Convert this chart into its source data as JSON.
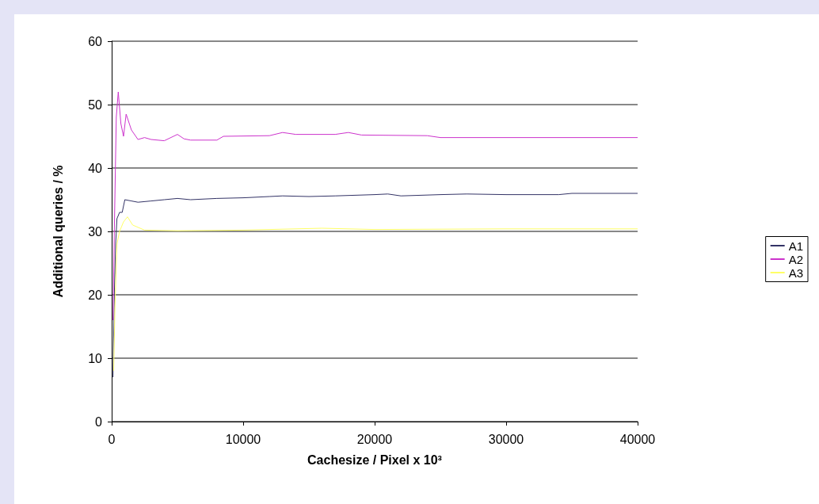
{
  "chart_data": {
    "type": "line",
    "xlabel": "Cachesize / Pixel x 10³",
    "ylabel": "Additional queries / %",
    "xlim": [
      0,
      40000
    ],
    "xticks": [
      0,
      10000,
      20000,
      30000,
      40000
    ],
    "ylim": [
      0,
      60
    ],
    "yticks": [
      0,
      10,
      20,
      30,
      40,
      50,
      60
    ],
    "grid": "y",
    "legend": "right",
    "marker": "none",
    "line_style": "solid",
    "series": [
      {
        "name": "A1",
        "color": "#333366",
        "x": [
          100,
          200,
          300,
          400,
          600,
          800,
          1000,
          1500,
          2000,
          3000,
          4000,
          5000,
          6000,
          8000,
          10000,
          12000,
          13000,
          15000,
          17000,
          20000,
          21000,
          22000,
          25000,
          27000,
          30000,
          34000,
          35000,
          40000
        ],
        "values": [
          7,
          20,
          28,
          32,
          33,
          33,
          35,
          34.8,
          34.6,
          34.8,
          35,
          35.2,
          35,
          35.2,
          35.3,
          35.5,
          35.6,
          35.5,
          35.6,
          35.8,
          35.9,
          35.6,
          35.8,
          35.9,
          35.8,
          35.8,
          36,
          36
        ]
      },
      {
        "name": "A2",
        "color": "#cc33cc",
        "x": [
          100,
          200,
          350,
          500,
          700,
          900,
          1100,
          1500,
          2000,
          2500,
          3000,
          4000,
          5000,
          5500,
          6000,
          8000,
          8500,
          12000,
          13000,
          14000,
          17000,
          18000,
          19000,
          24000,
          25000,
          40000
        ],
        "values": [
          16,
          30,
          48,
          52,
          47,
          45,
          48.5,
          46,
          44.5,
          44.8,
          44.5,
          44.3,
          45.3,
          44.6,
          44.4,
          44.4,
          45,
          45.1,
          45.6,
          45.3,
          45.3,
          45.6,
          45.2,
          45.1,
          44.8,
          44.8
        ]
      },
      {
        "name": "A3",
        "color": "#ffff66",
        "x": [
          150,
          250,
          400,
          600,
          900,
          1200,
          1600,
          2500,
          5000,
          10000,
          16000,
          20000,
          30000,
          40000
        ],
        "values": [
          8,
          18,
          28,
          30,
          31.5,
          32.3,
          31,
          30.2,
          30.1,
          30.2,
          30.5,
          30.3,
          30.4,
          30.4
        ]
      }
    ]
  }
}
